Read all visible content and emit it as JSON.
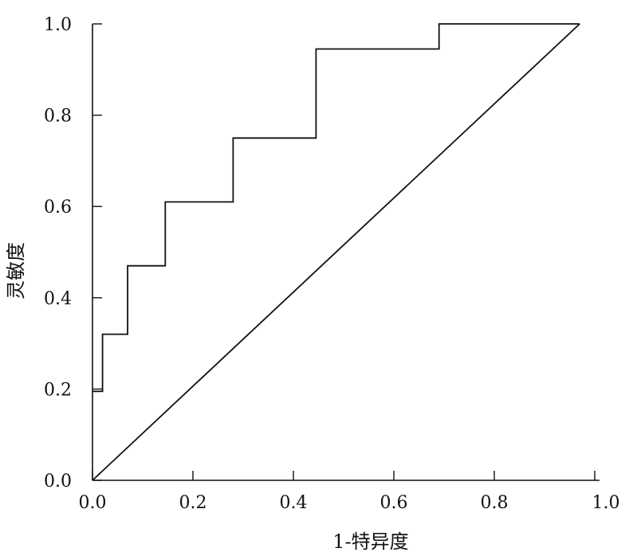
{
  "chart_data": {
    "type": "line",
    "title": "",
    "xlabel": "1-特异度",
    "ylabel": "灵敏度",
    "xlim": [
      0,
      1
    ],
    "ylim": [
      0,
      1
    ],
    "grid": false,
    "xticks": [
      {
        "value": 0.0,
        "label": "0.0"
      },
      {
        "value": 0.2,
        "label": "0.2"
      },
      {
        "value": 0.4,
        "label": "0.4"
      },
      {
        "value": 0.6,
        "label": "0.6"
      },
      {
        "value": 0.8,
        "label": "0.8"
      },
      {
        "value": 1.0,
        "label": "1.0"
      }
    ],
    "yticks": [
      {
        "value": 0.0,
        "label": "0.0"
      },
      {
        "value": 0.2,
        "label": "0.2"
      },
      {
        "value": 0.4,
        "label": "0.4"
      },
      {
        "value": 0.6,
        "label": "0.6"
      },
      {
        "value": 0.8,
        "label": "0.8"
      },
      {
        "value": 1.0,
        "label": "1.0"
      }
    ],
    "series": [
      {
        "type": "step",
        "x": [
          0.0,
          0.0,
          0.02,
          0.02,
          0.07,
          0.07,
          0.145,
          0.145,
          0.28,
          0.28,
          0.445,
          0.445,
          0.69,
          0.69,
          0.97
        ],
        "y": [
          0.195,
          0.195,
          0.195,
          0.32,
          0.32,
          0.47,
          0.47,
          0.61,
          0.61,
          0.75,
          0.75,
          0.945,
          0.945,
          1.0,
          1.0
        ]
      },
      {
        "type": "reference",
        "x": [
          0.0,
          0.97
        ],
        "y": [
          0.0,
          1.0
        ]
      }
    ],
    "colors": {
      "line": "#111111",
      "axis": "#111111"
    }
  }
}
